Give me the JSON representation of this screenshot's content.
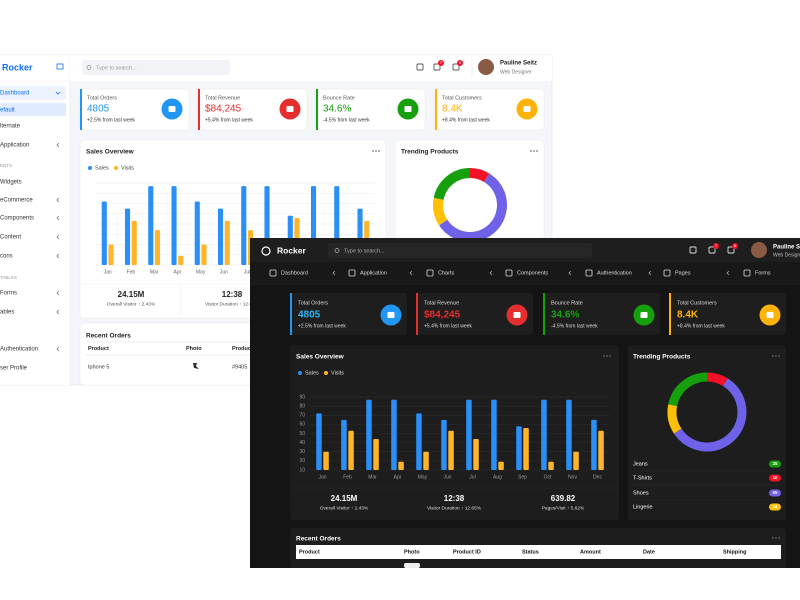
{
  "brand": "Rocker",
  "search": "Type to search...",
  "user": {
    "name": "Pauline Seitz",
    "role": "Web Designer"
  },
  "notifications": [
    "7",
    "8"
  ],
  "light_sidebar": [
    "Dashboard",
    "efault",
    "lternate",
    "Application",
    "ENTS",
    "Widgets",
    "eCommerce",
    "Components",
    "Content",
    "cons",
    "TABLES",
    "Forms",
    "ables",
    "Authentication",
    "ser Profile"
  ],
  "nav": [
    "Dashboard",
    "Application",
    "Charts",
    "Components",
    "Authentication",
    "Pages",
    "Forms"
  ],
  "cards": [
    {
      "title": "Total Orders",
      "value": "4805",
      "change": "+2.5% from last week"
    },
    {
      "title": "Total Revenue",
      "value": "$84,245",
      "change": "+5.4% from last week"
    },
    {
      "title": "Bounce Rate",
      "value": "34.6%",
      "change": "-4.5% from last week"
    },
    {
      "title": "Total Customers",
      "value": "8.4K",
      "change": "+8.4% from last week"
    }
  ],
  "stats": [
    {
      "value": "24.15M",
      "label": "Overall Visitor ↑ 2.43%"
    },
    {
      "value": "12:38",
      "label": "Visitor Duration ↑ 12.65%"
    },
    {
      "value": "639.82",
      "label": "Pages/Visit ↑ 5.62%"
    }
  ],
  "orders": {
    "title": "Recent Orders",
    "columns": [
      "Product",
      "Photo",
      "Product ID",
      "Status",
      "Amount",
      "Date",
      "Shipping"
    ],
    "rows": [
      [
        "Iphone 5",
        "#9405"
      ]
    ]
  },
  "chart_data": [
    {
      "type": "bar",
      "title": "Sales Overview",
      "categories": [
        "Jan",
        "Feb",
        "Mar",
        "Apr",
        "May",
        "Jun",
        "Jul",
        "Aug",
        "Sep",
        "Oct",
        "Nov",
        "Dec"
      ],
      "series": [
        {
          "name": "Sales",
          "color": "#2a8ff7",
          "values": [
            72,
            65,
            87,
            87,
            72,
            65,
            87,
            87,
            58,
            87,
            87,
            65
          ]
        },
        {
          "name": "Visits",
          "color": "#ffb42a",
          "values": [
            30,
            53,
            44,
            19,
            30,
            53,
            44,
            19,
            56,
            19,
            30,
            53
          ]
        }
      ],
      "ylim": [
        10,
        90
      ],
      "yticks": [
        10,
        20,
        30,
        40,
        50,
        60,
        70,
        80,
        90
      ],
      "grid": true,
      "legend": "top-left"
    },
    {
      "type": "pie",
      "title": "Trending Products",
      "categories": [
        "Jeans",
        "T-Shirts",
        "Shoes",
        "Lingerie"
      ],
      "values": [
        25,
        10,
        65,
        14
      ],
      "colors": [
        "#17a00e",
        "#f41127",
        "#6f62e8",
        "#ffc107"
      ]
    }
  ]
}
